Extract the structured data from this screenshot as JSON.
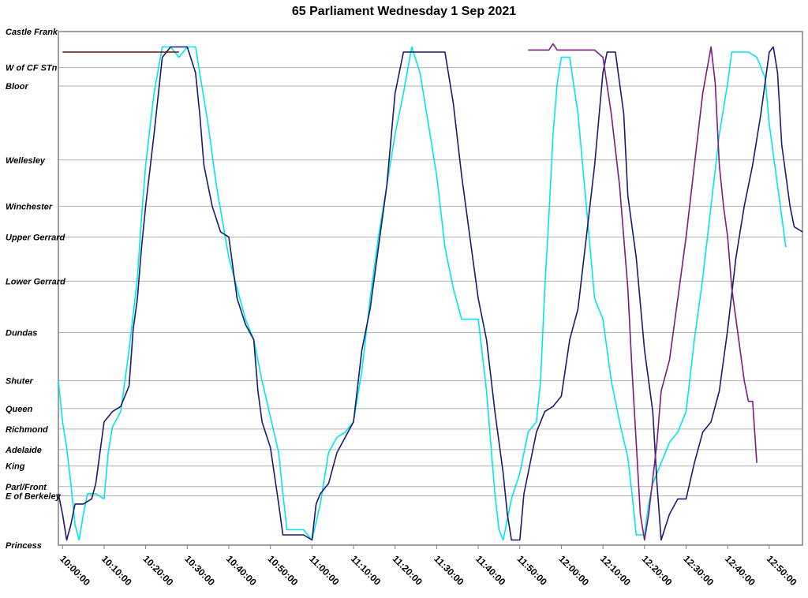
{
  "chart_data": {
    "type": "line",
    "title": "65 Parliament Wednesday 1 Sep 2021",
    "xlabel": "",
    "ylabel": "",
    "grid": true,
    "x_ticks": [
      "10:00:00",
      "10:10:00",
      "10:20:00",
      "10:30:00",
      "10:40:00",
      "10:50:00",
      "11:00:00",
      "11:10:00",
      "11:20:00",
      "11:30:00",
      "11:40:00",
      "11:50:00",
      "12:00:00",
      "12:10:00",
      "12:20:00",
      "12:30:00",
      "12:40:00",
      "12:50:00"
    ],
    "y_stops": [
      "Castle Frank",
      "W of CF STn",
      "Bloor",
      "Wellesley",
      "Winchester",
      "Upper Gerrard",
      "Lower Gerrard",
      "Dundas",
      "Shuter",
      "Queen",
      "Richmond",
      "Adelaide",
      "King",
      "Parl/Front",
      "E of Berkeley",
      "Princess"
    ],
    "y_stop_positions": [
      0,
      3.5,
      5.3,
      12.5,
      17,
      20,
      24.3,
      29.3,
      34,
      36.7,
      38.7,
      40.7,
      42.3,
      44.3,
      45.2,
      50
    ],
    "series": [
      {
        "color": "#00E5EE",
        "points": [
          [
            "09:59:00",
            34
          ],
          [
            "10:00:00",
            38
          ],
          [
            "10:01:00",
            40.5
          ],
          [
            "10:02:00",
            44
          ],
          [
            "10:03:00",
            48
          ],
          [
            "10:04:00",
            49.5
          ],
          [
            "10:05:00",
            47
          ],
          [
            "10:06:00",
            45
          ],
          [
            "10:08:00",
            45
          ],
          [
            "10:10:00",
            45.5
          ],
          [
            "10:11:00",
            41
          ],
          [
            "10:12:00",
            38.5
          ],
          [
            "10:14:00",
            37
          ],
          [
            "10:16:00",
            31
          ],
          [
            "10:18:00",
            24
          ],
          [
            "10:19:00",
            18
          ],
          [
            "10:20:00",
            13
          ],
          [
            "10:22:00",
            6
          ],
          [
            "10:24:00",
            1.5
          ],
          [
            "10:26:00",
            1.5
          ],
          [
            "10:28:00",
            2.5
          ],
          [
            "10:30:00",
            1.5
          ],
          [
            "10:32:00",
            1.5
          ],
          [
            "10:33:00",
            4
          ],
          [
            "10:35:00",
            9
          ],
          [
            "10:37:00",
            15
          ],
          [
            "10:40:00",
            22
          ],
          [
            "10:42:00",
            25
          ],
          [
            "10:44:00",
            28
          ],
          [
            "10:46:00",
            30
          ],
          [
            "10:48:00",
            34
          ],
          [
            "10:50:00",
            37.5
          ],
          [
            "10:52:00",
            41
          ],
          [
            "10:53:00",
            45
          ],
          [
            "10:54:00",
            48.5
          ],
          [
            "10:56:00",
            48.5
          ],
          [
            "10:58:00",
            48.5
          ],
          [
            "11:00:00",
            49.5
          ],
          [
            "11:02:00",
            46
          ],
          [
            "11:04:00",
            41
          ],
          [
            "11:06:00",
            39.5
          ],
          [
            "11:08:00",
            39
          ],
          [
            "11:10:00",
            38
          ],
          [
            "11:12:00",
            33
          ],
          [
            "11:14:00",
            26
          ],
          [
            "11:16:00",
            20
          ],
          [
            "11:18:00",
            15
          ],
          [
            "11:20:00",
            10
          ],
          [
            "11:22:00",
            6
          ],
          [
            "11:24:00",
            1.5
          ],
          [
            "11:26:00",
            4
          ],
          [
            "11:28:00",
            9
          ],
          [
            "11:30:00",
            14
          ],
          [
            "11:32:00",
            21
          ],
          [
            "11:34:00",
            25
          ],
          [
            "11:36:00",
            28
          ],
          [
            "11:38:00",
            28
          ],
          [
            "11:40:00",
            28
          ],
          [
            "11:42:00",
            35
          ],
          [
            "11:43:00",
            40
          ],
          [
            "11:44:00",
            45
          ],
          [
            "11:45:00",
            48.5
          ],
          [
            "11:46:00",
            49.5
          ],
          [
            "11:48:00",
            45.5
          ],
          [
            "11:50:00",
            43
          ],
          [
            "11:52:00",
            39
          ],
          [
            "11:54:00",
            38
          ],
          [
            "11:55:00",
            34
          ],
          [
            "11:56:00",
            25
          ],
          [
            "11:57:00",
            18
          ],
          [
            "11:58:00",
            10
          ],
          [
            "11:59:00",
            5
          ],
          [
            "12:00:00",
            2.5
          ],
          [
            "12:02:00",
            2.5
          ],
          [
            "12:04:00",
            8
          ],
          [
            "12:06:00",
            17
          ],
          [
            "12:08:00",
            26
          ],
          [
            "12:10:00",
            28
          ],
          [
            "12:12:00",
            34
          ],
          [
            "12:14:00",
            38
          ],
          [
            "12:16:00",
            41.5
          ],
          [
            "12:17:00",
            45
          ],
          [
            "12:18:00",
            49
          ],
          [
            "12:20:00",
            49
          ],
          [
            "12:21:00",
            46
          ],
          [
            "12:22:00",
            44
          ],
          [
            "12:24:00",
            42
          ],
          [
            "12:26:00",
            40
          ],
          [
            "12:28:00",
            39
          ],
          [
            "12:30:00",
            37
          ],
          [
            "12:32:00",
            30
          ],
          [
            "12:34:00",
            24
          ],
          [
            "12:36:00",
            17
          ],
          [
            "12:38:00",
            10
          ],
          [
            "12:40:00",
            5
          ],
          [
            "12:41:00",
            2
          ],
          [
            "12:43:00",
            2
          ],
          [
            "12:45:00",
            2
          ],
          [
            "12:47:00",
            2.5
          ],
          [
            "12:49:00",
            4.5
          ],
          [
            "12:50:00",
            9
          ],
          [
            "12:52:00",
            15
          ],
          [
            "12:53:00",
            18
          ],
          [
            "12:54:00",
            21
          ]
        ]
      },
      {
        "color": "#1A1A6E",
        "points": [
          [
            "09:59:00",
            45
          ],
          [
            "10:00:00",
            47
          ],
          [
            "10:01:00",
            49.5
          ],
          [
            "10:02:00",
            48
          ],
          [
            "10:03:00",
            46
          ],
          [
            "10:05:00",
            46
          ],
          [
            "10:07:00",
            45.5
          ],
          [
            "10:08:00",
            44
          ],
          [
            "10:10:00",
            38
          ],
          [
            "10:12:00",
            37
          ],
          [
            "10:14:00",
            36.5
          ],
          [
            "10:16:00",
            34.5
          ],
          [
            "10:17:00",
            29
          ],
          [
            "10:18:00",
            26
          ],
          [
            "10:19:00",
            21
          ],
          [
            "10:20:00",
            17
          ],
          [
            "10:22:00",
            10
          ],
          [
            "10:24:00",
            2.5
          ],
          [
            "10:26:00",
            1.5
          ],
          [
            "10:28:00",
            1.5
          ],
          [
            "10:30:00",
            1.5
          ],
          [
            "10:32:00",
            4
          ],
          [
            "10:33:00",
            8
          ],
          [
            "10:34:00",
            13
          ],
          [
            "10:36:00",
            17
          ],
          [
            "10:38:00",
            19.5
          ],
          [
            "10:40:00",
            20
          ],
          [
            "10:42:00",
            26
          ],
          [
            "10:44:00",
            28.5
          ],
          [
            "10:46:00",
            30
          ],
          [
            "10:47:00",
            35
          ],
          [
            "10:48:00",
            38
          ],
          [
            "10:50:00",
            40.5
          ],
          [
            "10:52:00",
            46
          ],
          [
            "10:53:00",
            49
          ],
          [
            "10:55:00",
            49
          ],
          [
            "10:57:00",
            49
          ],
          [
            "10:58:00",
            49
          ],
          [
            "11:00:00",
            49.5
          ],
          [
            "11:01:00",
            46
          ],
          [
            "11:02:00",
            45
          ],
          [
            "11:04:00",
            44
          ],
          [
            "11:06:00",
            41
          ],
          [
            "11:08:00",
            39.5
          ],
          [
            "11:10:00",
            38
          ],
          [
            "11:12:00",
            31
          ],
          [
            "11:14:00",
            27
          ],
          [
            "11:16:00",
            21
          ],
          [
            "11:18:00",
            15
          ],
          [
            "11:20:00",
            6
          ],
          [
            "11:22:00",
            2
          ],
          [
            "11:24:00",
            2
          ],
          [
            "11:26:00",
            2
          ],
          [
            "11:28:00",
            2
          ],
          [
            "11:30:00",
            2
          ],
          [
            "11:32:00",
            2
          ],
          [
            "11:34:00",
            7
          ],
          [
            "11:36:00",
            14
          ],
          [
            "11:38:00",
            20
          ],
          [
            "11:40:00",
            26
          ],
          [
            "11:42:00",
            30
          ],
          [
            "11:44:00",
            37
          ],
          [
            "11:46:00",
            43
          ],
          [
            "11:47:00",
            47
          ],
          [
            "11:48:00",
            49.5
          ],
          [
            "11:50:00",
            49.5
          ],
          [
            "11:51:00",
            45
          ],
          [
            "11:52:00",
            43
          ],
          [
            "11:54:00",
            39
          ],
          [
            "11:56:00",
            37
          ],
          [
            "11:58:00",
            36.5
          ],
          [
            "12:00:00",
            35.5
          ],
          [
            "12:02:00",
            30
          ],
          [
            "12:04:00",
            27
          ],
          [
            "12:06:00",
            20
          ],
          [
            "12:08:00",
            13
          ],
          [
            "12:10:00",
            4
          ],
          [
            "12:11:00",
            2
          ],
          [
            "12:13:00",
            2
          ],
          [
            "12:15:00",
            8
          ],
          [
            "12:16:00",
            16
          ],
          [
            "12:18:00",
            22
          ],
          [
            "12:20:00",
            31
          ],
          [
            "12:22:00",
            37
          ],
          [
            "12:23:00",
            44
          ],
          [
            "12:24:00",
            49.5
          ],
          [
            "12:26:00",
            47
          ],
          [
            "12:28:00",
            45.5
          ],
          [
            "12:30:00",
            45.5
          ],
          [
            "12:32:00",
            42
          ],
          [
            "12:34:00",
            39
          ],
          [
            "12:36:00",
            38
          ],
          [
            "12:38:00",
            35
          ],
          [
            "12:40:00",
            29
          ],
          [
            "12:42:00",
            22
          ],
          [
            "12:44:00",
            17
          ],
          [
            "12:46:00",
            13
          ],
          [
            "12:48:00",
            8
          ],
          [
            "12:50:00",
            2
          ],
          [
            "12:51:00",
            1.5
          ],
          [
            "12:52:00",
            4
          ],
          [
            "12:53:00",
            11
          ],
          [
            "12:55:00",
            17
          ],
          [
            "12:56:00",
            19
          ],
          [
            "12:58:00",
            19.5
          ]
        ]
      },
      {
        "color": "#6B0F14",
        "points": [
          [
            "10:00:00",
            2
          ],
          [
            "10:20:00",
            2
          ],
          [
            "10:28:00",
            2
          ]
        ]
      },
      {
        "color": "#7B1A7F",
        "points": [
          [
            "11:52:00",
            1.8
          ],
          [
            "11:57:00",
            1.8
          ],
          [
            "11:58:00",
            1.2
          ],
          [
            "11:59:00",
            1.8
          ],
          [
            "12:08:00",
            1.8
          ],
          [
            "12:10:00",
            2.5
          ],
          [
            "12:12:00",
            8
          ],
          [
            "12:14:00",
            15
          ],
          [
            "12:16:00",
            25
          ],
          [
            "12:17:00",
            33
          ],
          [
            "12:18:00",
            40
          ],
          [
            "12:19:00",
            47
          ],
          [
            "12:20:00",
            49.5
          ],
          [
            "12:21:00",
            47
          ],
          [
            "12:23:00",
            40
          ],
          [
            "12:24:00",
            35
          ],
          [
            "12:26:00",
            32
          ],
          [
            "12:28:00",
            26
          ],
          [
            "12:30:00",
            20
          ],
          [
            "12:32:00",
            13
          ],
          [
            "12:34:00",
            6
          ],
          [
            "12:36:00",
            1.5
          ],
          [
            "12:37:00",
            5
          ],
          [
            "12:38:00",
            13
          ],
          [
            "12:39:00",
            17
          ],
          [
            "12:40:00",
            20
          ],
          [
            "12:41:00",
            25
          ],
          [
            "12:42:00",
            28
          ],
          [
            "12:44:00",
            34
          ],
          [
            "12:45:00",
            36
          ],
          [
            "12:46:00",
            36
          ],
          [
            "12:47:00",
            42
          ]
        ]
      }
    ],
    "x_start": "09:59:00",
    "x_end": "12:58:00"
  }
}
